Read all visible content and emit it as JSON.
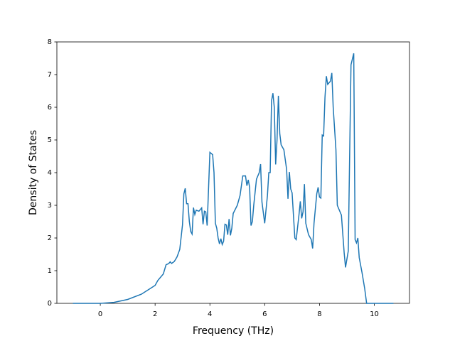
{
  "chart_data": {
    "type": "line",
    "x_label": "Frequency (THz)",
    "y_label": "Density of States",
    "x": [
      -1.0,
      0.0,
      0.5,
      1.0,
      1.5,
      2.0,
      2.1,
      2.3,
      2.4,
      2.5,
      2.55,
      2.6,
      2.7,
      2.8,
      2.9,
      3.0,
      3.05,
      3.1,
      3.15,
      3.2,
      3.25,
      3.3,
      3.35,
      3.4,
      3.45,
      3.5,
      3.6,
      3.7,
      3.75,
      3.8,
      3.85,
      3.9,
      4.0,
      4.1,
      4.15,
      4.2,
      4.25,
      4.3,
      4.35,
      4.4,
      4.45,
      4.5,
      4.55,
      4.6,
      4.65,
      4.7,
      4.75,
      4.8,
      4.85,
      5.0,
      5.1,
      5.2,
      5.3,
      5.35,
      5.4,
      5.45,
      5.5,
      5.55,
      5.6,
      5.7,
      5.8,
      5.85,
      5.9,
      6.0,
      6.1,
      6.15,
      6.2,
      6.25,
      6.3,
      6.35,
      6.4,
      6.45,
      6.5,
      6.55,
      6.6,
      6.7,
      6.8,
      6.85,
      6.9,
      6.95,
      7.0,
      7.1,
      7.15,
      7.25,
      7.3,
      7.35,
      7.4,
      7.45,
      7.5,
      7.6,
      7.7,
      7.75,
      7.8,
      7.9,
      7.95,
      8.0,
      8.05,
      8.1,
      8.15,
      8.2,
      8.25,
      8.3,
      8.4,
      8.45,
      8.5,
      8.6,
      8.65,
      8.8,
      8.9,
      8.95,
      9.0,
      9.05,
      9.1,
      9.15,
      9.25,
      9.3,
      9.35,
      9.4,
      9.45,
      9.55,
      9.65,
      9.72,
      10.7
    ],
    "series": [
      {
        "color": "#1f77b4",
        "values": [
          0,
          0,
          0.03,
          0.12,
          0.28,
          0.55,
          0.7,
          0.9,
          1.18,
          1.22,
          1.27,
          1.22,
          1.28,
          1.42,
          1.65,
          2.4,
          3.35,
          3.52,
          3.05,
          3.05,
          2.5,
          2.2,
          2.12,
          2.93,
          2.72,
          2.85,
          2.82,
          2.92,
          2.42,
          2.82,
          2.8,
          2.38,
          4.62,
          4.55,
          4.0,
          2.45,
          2.3,
          2.0,
          1.82,
          1.98,
          1.8,
          1.9,
          2.42,
          2.4,
          2.1,
          2.58,
          2.08,
          2.3,
          2.75,
          3.0,
          3.3,
          3.9,
          3.9,
          3.6,
          3.78,
          3.55,
          2.38,
          2.5,
          3.0,
          3.8,
          4.0,
          4.26,
          3.1,
          2.45,
          3.3,
          4.0,
          4.0,
          6.2,
          6.43,
          6.0,
          4.25,
          5.0,
          6.35,
          5.2,
          4.85,
          4.7,
          4.1,
          3.2,
          4.02,
          3.5,
          3.38,
          2.0,
          1.95,
          2.7,
          3.12,
          2.6,
          2.8,
          3.65,
          2.45,
          2.1,
          1.95,
          1.68,
          2.45,
          3.35,
          3.55,
          3.25,
          3.22,
          5.15,
          5.12,
          6.3,
          6.95,
          6.7,
          6.8,
          7.05,
          6.0,
          4.7,
          3.0,
          2.7,
          1.55,
          1.1,
          1.35,
          1.6,
          4.5,
          7.3,
          7.65,
          1.95,
          1.85,
          2.0,
          1.4,
          0.95,
          0.45,
          0,
          0
        ]
      }
    ],
    "xlim": [
      -1.585,
      11.285
    ],
    "ylim": [
      0,
      8
    ],
    "xticks": [
      0,
      2,
      4,
      6,
      8,
      10
    ],
    "yticks": [
      0,
      1,
      2,
      3,
      4,
      5,
      6,
      7,
      8
    ]
  }
}
